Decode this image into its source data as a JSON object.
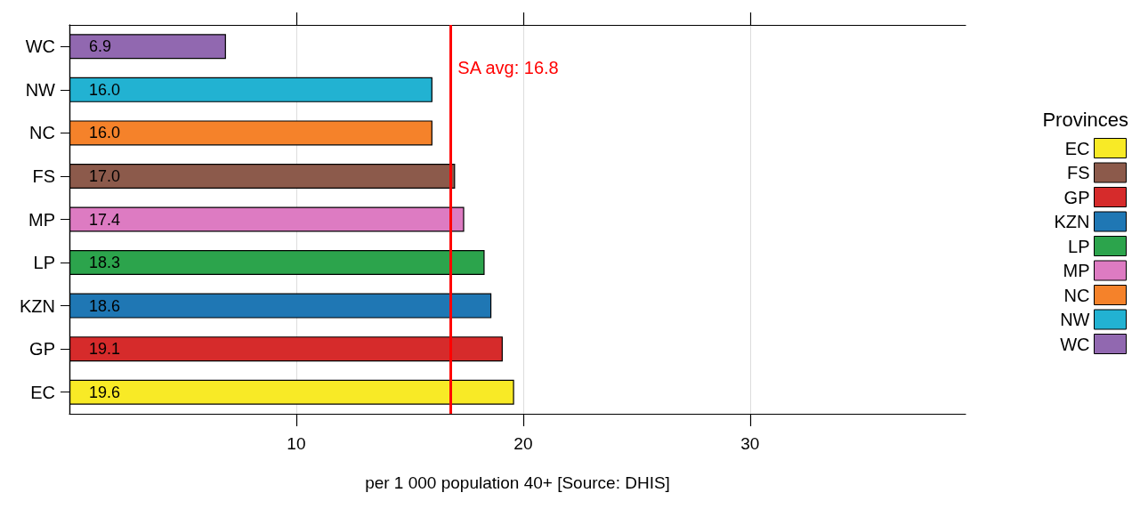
{
  "chart_data": {
    "type": "bar",
    "orientation": "horizontal",
    "categories": [
      "WC",
      "NW",
      "NC",
      "FS",
      "MP",
      "LP",
      "KZN",
      "GP",
      "EC"
    ],
    "series": [
      {
        "name": "EC",
        "color": "#f8ea26",
        "values": [
          null,
          null,
          null,
          null,
          null,
          null,
          null,
          null,
          19.6
        ],
        "value_labels": [
          null,
          null,
          null,
          null,
          null,
          null,
          null,
          null,
          "19.6"
        ]
      },
      {
        "name": "FS",
        "color": "#8c5a4b",
        "values": [
          null,
          null,
          null,
          17.0,
          null,
          null,
          null,
          null,
          null
        ],
        "value_labels": [
          null,
          null,
          null,
          "17.0",
          null,
          null,
          null,
          null,
          null
        ]
      },
      {
        "name": "GP",
        "color": "#d62b2b",
        "values": [
          null,
          null,
          null,
          null,
          null,
          null,
          null,
          19.1,
          null
        ],
        "value_labels": [
          null,
          null,
          null,
          null,
          null,
          null,
          null,
          "19.1",
          null
        ]
      },
      {
        "name": "KZN",
        "color": "#1f77b4",
        "values": [
          null,
          null,
          null,
          null,
          null,
          null,
          18.6,
          null,
          null
        ],
        "value_labels": [
          null,
          null,
          null,
          null,
          null,
          null,
          "18.6",
          null,
          null
        ]
      },
      {
        "name": "LP",
        "color": "#2ca44c",
        "values": [
          null,
          null,
          null,
          null,
          null,
          18.3,
          null,
          null,
          null
        ],
        "value_labels": [
          null,
          null,
          null,
          null,
          null,
          "18.3",
          null,
          null,
          null
        ]
      },
      {
        "name": "MP",
        "color": "#dd7bc2",
        "values": [
          null,
          null,
          null,
          null,
          17.4,
          null,
          null,
          null,
          null
        ],
        "value_labels": [
          null,
          null,
          null,
          null,
          "17.4",
          null,
          null,
          null,
          null
        ]
      },
      {
        "name": "NC",
        "color": "#f5822a",
        "values": [
          null,
          null,
          16.0,
          null,
          null,
          null,
          null,
          null,
          null
        ],
        "value_labels": [
          null,
          null,
          "16.0",
          null,
          null,
          null,
          null,
          null,
          null
        ]
      },
      {
        "name": "NW",
        "color": "#22b2d2",
        "values": [
          null,
          16.0,
          null,
          null,
          null,
          null,
          null,
          null,
          null
        ],
        "value_labels": [
          null,
          "16.0",
          null,
          null,
          null,
          null,
          null,
          null,
          null
        ]
      },
      {
        "name": "WC",
        "color": "#9168b0",
        "values": [
          6.9,
          null,
          null,
          null,
          null,
          null,
          null,
          null,
          null
        ],
        "value_labels": [
          "6.9",
          null,
          null,
          null,
          null,
          null,
          null,
          null,
          null
        ]
      }
    ],
    "xlabel": "per 1 000 population 40+ [Source: DHIS]",
    "xlim": [
      0,
      39.5
    ],
    "xticks": [
      10,
      20,
      30
    ],
    "grid": "x",
    "legend": "right",
    "legend_title": "Provinces",
    "ref_lines": [
      {
        "axis": "x",
        "value": 16.8,
        "label": "SA avg: 16.8",
        "color": "#ff0000"
      }
    ]
  }
}
